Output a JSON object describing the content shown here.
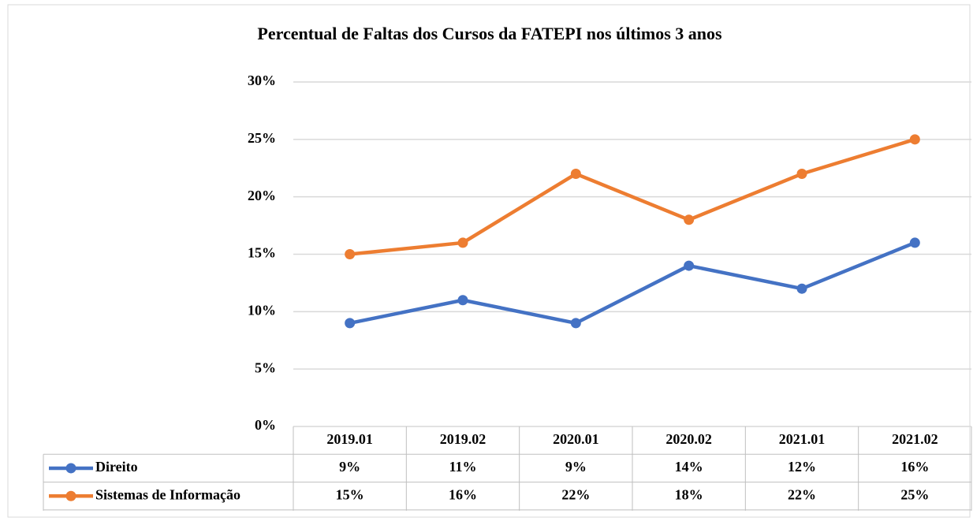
{
  "chart_data": {
    "type": "line",
    "title": "Percentual de Faltas dos Cursos da FATEPI nos últimos  3 anos",
    "categories": [
      "2019.01",
      "2019.02",
      "2020.01",
      "2020.02",
      "2021.01",
      "2021.02"
    ],
    "series": [
      {
        "name": "Direito",
        "color": "#4472c4",
        "values": [
          9,
          11,
          9,
          14,
          12,
          16
        ],
        "value_labels": [
          "9%",
          "11%",
          "9%",
          "14%",
          "12%",
          "16%"
        ]
      },
      {
        "name": "Sistemas de Informação",
        "color": "#ed7d31",
        "values": [
          15,
          16,
          22,
          18,
          22,
          25
        ],
        "value_labels": [
          "15%",
          "16%",
          "22%",
          "18%",
          "22%",
          "25%"
        ]
      }
    ],
    "ylim": [
      0,
      30
    ],
    "yticks": [
      {
        "value": 0,
        "label": "0%"
      },
      {
        "value": 5,
        "label": "5%"
      },
      {
        "value": 10,
        "label": "10%"
      },
      {
        "value": 15,
        "label": "15%"
      },
      {
        "value": 20,
        "label": "20%"
      },
      {
        "value": 25,
        "label": "25%"
      },
      {
        "value": 30,
        "label": "30%"
      }
    ],
    "grid": true,
    "data_table": true
  }
}
